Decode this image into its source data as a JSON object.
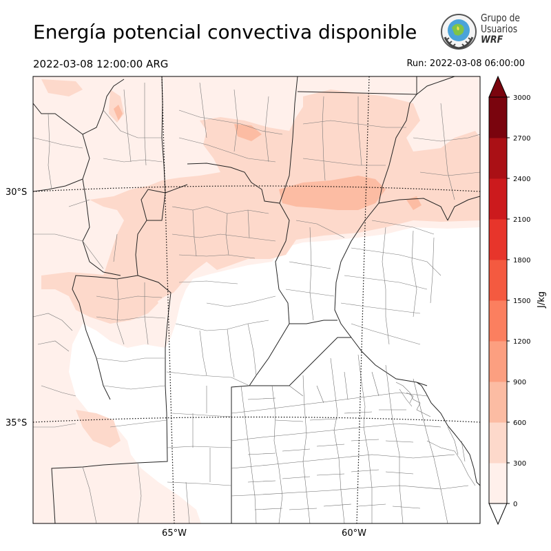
{
  "header": {
    "title": "Energía potencial convectiva disponible",
    "valid_time": "2022-03-08 12:00:00 ARG",
    "run_time": "Run: 2022-03-08 06:00:00"
  },
  "logo": {
    "line1": "Grupo de",
    "line2": "Usuarios",
    "line3": "WRF",
    "icon": "wrf-globe-seal-icon"
  },
  "map": {
    "lat_labels": [
      "30°S",
      "35°S"
    ],
    "lon_labels": [
      "65°W",
      "60°W"
    ]
  },
  "colorbar": {
    "label": "J/kg",
    "ticks": [
      "0",
      "300",
      "600",
      "900",
      "1200",
      "1500",
      "1800",
      "2100",
      "2400",
      "2700",
      "3000"
    ],
    "colors": [
      "#fff0eb",
      "#fdd9cb",
      "#fcbca3",
      "#fc9f80",
      "#fb7f5f",
      "#f45a40",
      "#e7352b",
      "#cc1a1d",
      "#aa1015",
      "#7a040e"
    ],
    "extend": "both"
  }
}
